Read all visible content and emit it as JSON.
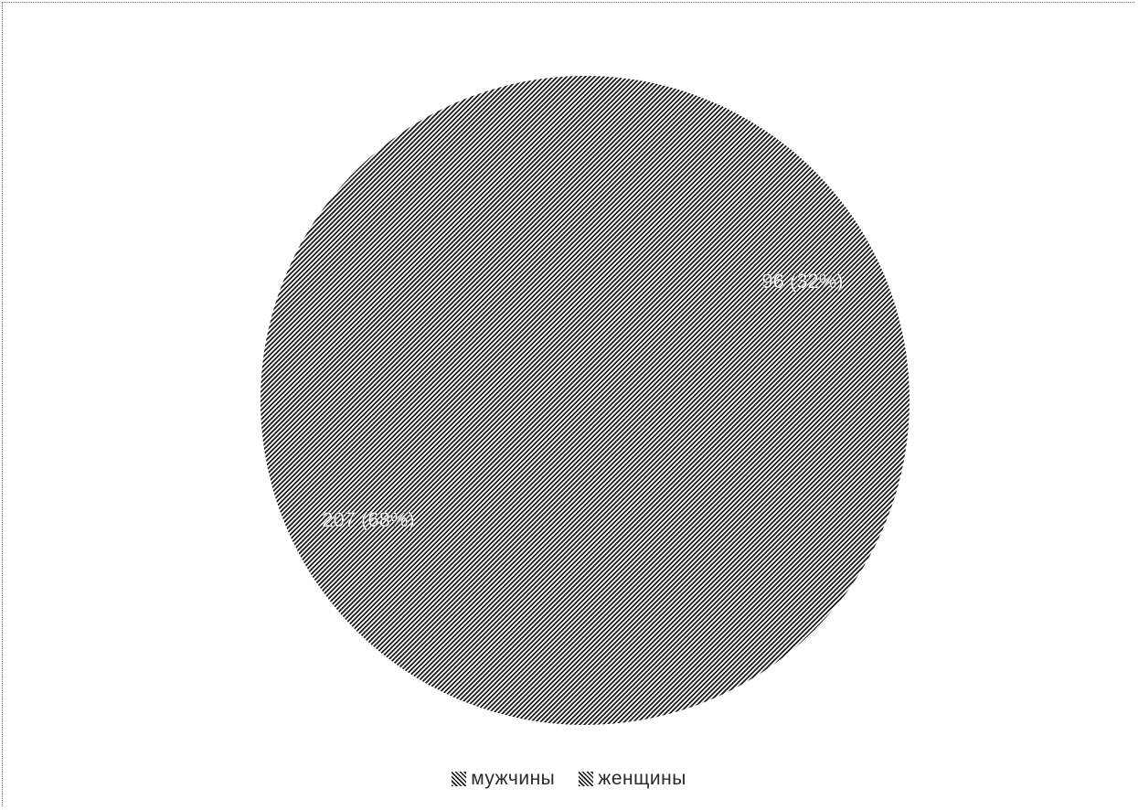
{
  "chart_data": {
    "type": "pie",
    "categories": [
      "мужчины",
      "женщины"
    ],
    "values": [
      96,
      207
    ],
    "percents": [
      32,
      68
    ],
    "data_labels": [
      "96 (32%)",
      "207 (68%)"
    ],
    "legend": {
      "position": "bottom",
      "items": [
        "мужчины",
        "женщины"
      ]
    },
    "title": ""
  },
  "colors": {
    "hatch_dark": "#1a1a1a",
    "hatch_light": "#ffffff",
    "label_fill": "#ffffff"
  }
}
